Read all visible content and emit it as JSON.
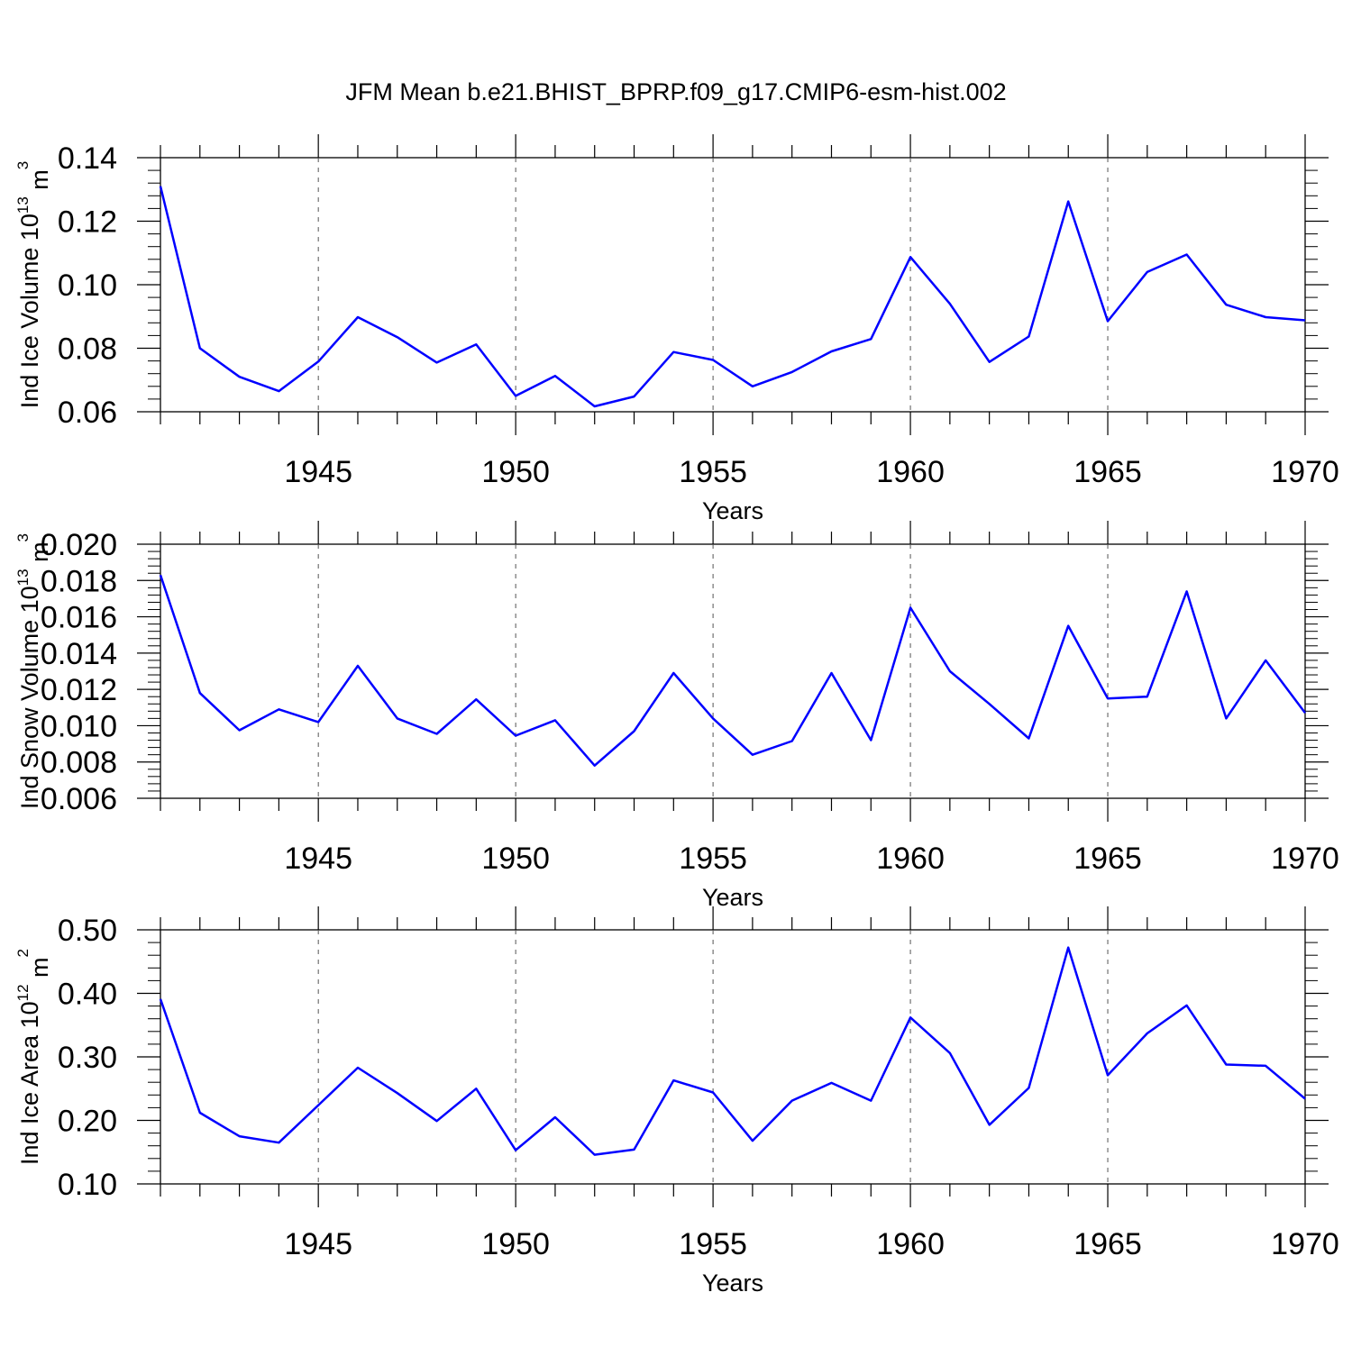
{
  "title": "JFM Mean b.e21.BHIST_BPRP.f09_g17.CMIP6-esm-hist.002",
  "chart_data": [
    {
      "type": "line",
      "ylabel_main": "Ind Ice Volume 10",
      "ylabel_exp": "13",
      "ylabel_unit": " m",
      "ylabel_unit_exp": "3",
      "xlabel": "Years",
      "xlim": [
        1941,
        1970
      ],
      "ylim": [
        0.06,
        0.14
      ],
      "yticks": [
        "0.06",
        "0.08",
        "0.10",
        "0.12",
        "0.14"
      ],
      "xticks": [
        "1945",
        "1950",
        "1955",
        "1960",
        "1965",
        "1970"
      ],
      "line_color": "#0000ff",
      "x": [
        1941,
        1942,
        1943,
        1944,
        1945,
        1946,
        1947,
        1948,
        1949,
        1950,
        1951,
        1952,
        1953,
        1954,
        1955,
        1956,
        1957,
        1958,
        1959,
        1960,
        1961,
        1962,
        1963,
        1964,
        1965,
        1966,
        1967,
        1968,
        1969,
        1970
      ],
      "values": [
        0.131,
        0.08,
        0.071,
        0.0665,
        0.0758,
        0.0898,
        0.0835,
        0.0755,
        0.0812,
        0.065,
        0.0713,
        0.0617,
        0.0648,
        0.0788,
        0.0763,
        0.068,
        0.0725,
        0.079,
        0.0829,
        0.1087,
        0.094,
        0.0757,
        0.0837,
        0.1262,
        0.0885,
        0.104,
        0.1095,
        0.0937,
        0.0898,
        0.0888
      ]
    },
    {
      "type": "line",
      "ylabel_main": "Ind Snow Volume 10",
      "ylabel_exp": "13",
      "ylabel_unit": " m",
      "ylabel_unit_exp": "3",
      "xlabel": "Years",
      "xlim": [
        1941,
        1970
      ],
      "ylim": [
        0.006,
        0.02
      ],
      "yticks": [
        "0.006",
        "0.008",
        "0.010",
        "0.012",
        "0.014",
        "0.016",
        "0.018",
        "0.020"
      ],
      "xticks": [
        "1945",
        "1950",
        "1955",
        "1960",
        "1965",
        "1970"
      ],
      "line_color": "#0000ff",
      "x": [
        1941,
        1942,
        1943,
        1944,
        1945,
        1946,
        1947,
        1948,
        1949,
        1950,
        1951,
        1952,
        1953,
        1954,
        1955,
        1956,
        1957,
        1958,
        1959,
        1960,
        1961,
        1962,
        1963,
        1964,
        1965,
        1966,
        1967,
        1968,
        1969,
        1970
      ],
      "values": [
        0.0183,
        0.0118,
        0.00975,
        0.0109,
        0.0102,
        0.0133,
        0.0104,
        0.00955,
        0.01145,
        0.00945,
        0.0103,
        0.0078,
        0.0097,
        0.0129,
        0.0104,
        0.0084,
        0.00915,
        0.0129,
        0.0092,
        0.0165,
        0.013,
        0.0112,
        0.0093,
        0.0155,
        0.0115,
        0.0116,
        0.0174,
        0.0104,
        0.0136,
        0.0107
      ]
    },
    {
      "type": "line",
      "ylabel_main": "Ind Ice Area 10",
      "ylabel_exp": "12",
      "ylabel_unit": " m",
      "ylabel_unit_exp": "2",
      "xlabel": "Years",
      "xlim": [
        1941,
        1970
      ],
      "ylim": [
        0.1,
        0.5
      ],
      "yticks": [
        "0.10",
        "0.20",
        "0.30",
        "0.40",
        "0.50"
      ],
      "xticks": [
        "1945",
        "1950",
        "1955",
        "1960",
        "1965",
        "1970"
      ],
      "line_color": "#0000ff",
      "x": [
        1941,
        1942,
        1943,
        1944,
        1945,
        1946,
        1947,
        1948,
        1949,
        1950,
        1951,
        1952,
        1953,
        1954,
        1955,
        1956,
        1957,
        1958,
        1959,
        1960,
        1961,
        1962,
        1963,
        1964,
        1965,
        1966,
        1967,
        1968,
        1969,
        1970
      ],
      "values": [
        0.391,
        0.212,
        0.175,
        0.165,
        0.224,
        0.283,
        0.243,
        0.199,
        0.25,
        0.153,
        0.205,
        0.146,
        0.154,
        0.263,
        0.244,
        0.168,
        0.231,
        0.259,
        0.231,
        0.362,
        0.306,
        0.193,
        0.251,
        0.472,
        0.271,
        0.337,
        0.381,
        0.288,
        0.286,
        0.234
      ]
    }
  ]
}
